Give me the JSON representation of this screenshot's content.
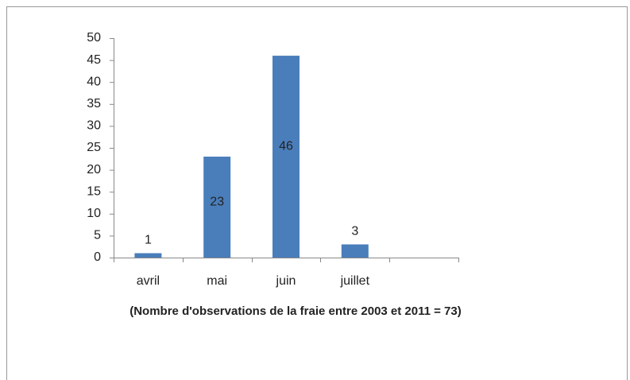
{
  "chart_data": {
    "type": "bar",
    "categories": [
      "avril",
      "mai",
      "juin",
      "juillet",
      null
    ],
    "values": [
      1,
      23,
      46,
      3,
      null
    ],
    "color": "#4a7ebb",
    "ylim": [
      0,
      50
    ],
    "yticks": [
      0,
      5,
      10,
      15,
      20,
      25,
      30,
      35,
      40,
      45,
      50
    ],
    "x_label": "(Nombre d'observations de la fraie entre 2003 et 2011 = 73)",
    "grid": false
  }
}
